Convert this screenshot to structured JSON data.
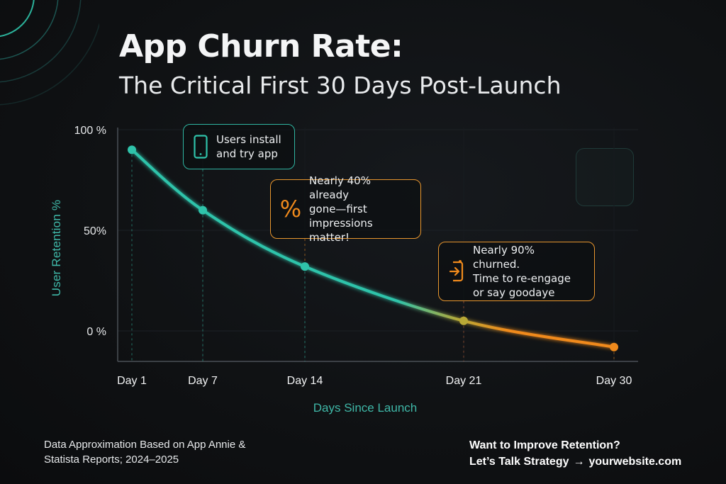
{
  "title": "App Churn Rate:",
  "subtitle": "The Critical First 30 Days Post-Launch",
  "colors": {
    "background": "#0f1113",
    "teal": "#2fc3aa",
    "orange": "#f08a1c",
    "olive": "#b8a836"
  },
  "chart_data": {
    "type": "line",
    "xlabel": "Days Since Launch",
    "ylabel": "User Retention %",
    "x": [
      "Day 1",
      "Day 7",
      "Day 14",
      "Day 21",
      "Day 30"
    ],
    "series": [
      {
        "values": [
          90,
          60,
          32,
          5,
          -8
        ]
      }
    ],
    "y_ticks": [
      {
        "value": 100,
        "label": "100 %"
      },
      {
        "value": 50,
        "label": "50%"
      },
      {
        "value": 0,
        "label": "0 %"
      }
    ],
    "ylim": [
      -15,
      100
    ],
    "grid": true,
    "annotations": [
      {
        "text": "Users install\nand try app",
        "icon": "phone-icon",
        "point": "Day 7"
      },
      {
        "text": "Nearly 40% already\ngone—first\nimpressions matter!",
        "icon": "percent-icon",
        "point": "Day 14"
      },
      {
        "text": "Nearly 90% churned.\nTime to re-engage\nor say goodaye",
        "icon": "exit-icon",
        "point": "Day 21"
      }
    ]
  },
  "footer": {
    "source": "Data Approximation Based on App Annie & Statista Reports; 2024–2025",
    "cta_line1": "Want to Improve Retention?",
    "cta_line2_prefix": "Let’s Talk Strategy",
    "cta_arrow": "→",
    "cta_link": "yourwebsite.com"
  }
}
